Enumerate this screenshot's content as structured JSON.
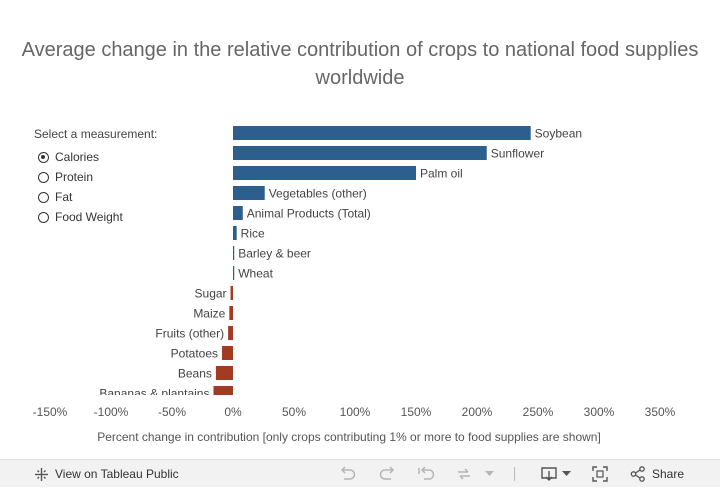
{
  "title": "Average change in the relative contribution of crops to national food supplies worldwide",
  "measurement": {
    "label": "Select a measurement:",
    "options": [
      "Calories",
      "Protein",
      "Fat",
      "Food Weight"
    ],
    "selected": "Calories"
  },
  "colors": {
    "positive": "#2c5f8d",
    "negative": "#a33a22"
  },
  "chart_data": {
    "type": "bar",
    "orientation": "horizontal",
    "categories": [
      "Soybean",
      "Sunflower",
      "Palm oil",
      "Vegetables (other)",
      "Animal Products (Total)",
      "Rice",
      "Barley & beer",
      "Wheat",
      "Sugar",
      "Maize",
      "Fruits (other)",
      "Potatoes",
      "Beans",
      "Bananas & plantains"
    ],
    "values": [
      244,
      208,
      150,
      26,
      8,
      3,
      1,
      1,
      -2,
      -3,
      -4,
      -9,
      -14,
      -16
    ],
    "xlabel": "Percent change in contribution [only crops contributing 1% or more to food supplies are shown]",
    "x_ticks": [
      "-150%",
      "-100%",
      "-50%",
      "0%",
      "50%",
      "100%",
      "150%",
      "200%",
      "250%",
      "300%",
      "350%"
    ],
    "xlim": [
      -150,
      350
    ],
    "grid": false
  },
  "toolbar": {
    "view_label": "View on Tableau Public",
    "share_label": "Share"
  }
}
